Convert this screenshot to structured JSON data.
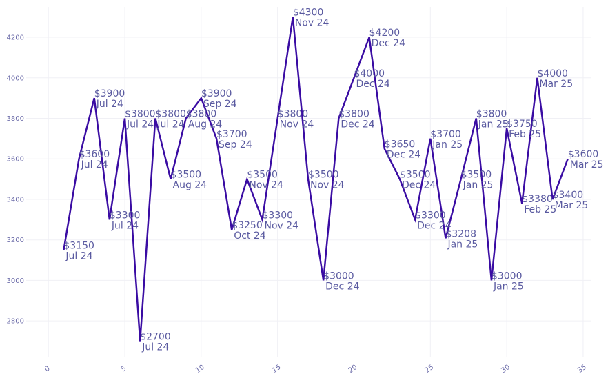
{
  "chart_data": {
    "type": "line",
    "title": "",
    "xlabel": "",
    "ylabel": "",
    "xlim": [
      -1.5,
      35.5
    ],
    "ylim": [
      2620,
      4350
    ],
    "x_ticks": [
      0,
      5,
      10,
      15,
      20,
      25,
      30,
      35
    ],
    "y_ticks": [
      2800,
      3000,
      3200,
      3400,
      3600,
      3800,
      4000,
      4200
    ],
    "grid": true,
    "line_color": "#3a0ca3",
    "label_color": "#5a5aa0",
    "points": [
      {
        "x": 1,
        "y": 3150,
        "price": "$3150",
        "month": "Jul 24"
      },
      {
        "x": 2,
        "y": 3600,
        "price": "$3600",
        "month": "Jul 24"
      },
      {
        "x": 3,
        "y": 3900,
        "price": "$3900",
        "month": "Jul 24"
      },
      {
        "x": 4,
        "y": 3300,
        "price": "$3300",
        "month": "Jul 24"
      },
      {
        "x": 5,
        "y": 3800,
        "price": "$3800",
        "month": "Jul 24"
      },
      {
        "x": 6,
        "y": 2700,
        "price": "$2700",
        "month": "Jul 24"
      },
      {
        "x": 7,
        "y": 3800,
        "price": "$3800",
        "month": "Jul 24"
      },
      {
        "x": 8,
        "y": 3500,
        "price": "$3500",
        "month": "Aug 24"
      },
      {
        "x": 9,
        "y": 3800,
        "price": "$3800",
        "month": "Aug 24"
      },
      {
        "x": 10,
        "y": 3900,
        "price": "$3900",
        "month": "Sep 24"
      },
      {
        "x": 11,
        "y": 3700,
        "price": "$3700",
        "month": "Sep 24"
      },
      {
        "x": 12,
        "y": 3250,
        "price": "$3250",
        "month": "Oct 24"
      },
      {
        "x": 13,
        "y": 3500,
        "price": "$3500",
        "month": "Nov 24"
      },
      {
        "x": 14,
        "y": 3300,
        "price": "$3300",
        "month": "Nov 24"
      },
      {
        "x": 15,
        "y": 3800,
        "price": "$3800",
        "month": "Nov 24"
      },
      {
        "x": 16,
        "y": 4300,
        "price": "$4300",
        "month": "Nov 24"
      },
      {
        "x": 17,
        "y": 3500,
        "price": "$3500",
        "month": "Nov 24"
      },
      {
        "x": 18,
        "y": 3000,
        "price": "$3000",
        "month": "Dec 24"
      },
      {
        "x": 19,
        "y": 3800,
        "price": "$3800",
        "month": "Dec 24"
      },
      {
        "x": 20,
        "y": 4000,
        "price": "$4000",
        "month": "Dec 24"
      },
      {
        "x": 21,
        "y": 4200,
        "price": "$4200",
        "month": "Dec 24"
      },
      {
        "x": 22,
        "y": 3650,
        "price": "$3650",
        "month": "Dec 24"
      },
      {
        "x": 23,
        "y": 3500,
        "price": "$3500",
        "month": "Dec 24"
      },
      {
        "x": 24,
        "y": 3300,
        "price": "$3300",
        "month": "Dec 24"
      },
      {
        "x": 25,
        "y": 3700,
        "price": "$3700",
        "month": "Jan 25"
      },
      {
        "x": 26,
        "y": 3208,
        "price": "$3208",
        "month": "Jan 25"
      },
      {
        "x": 27,
        "y": 3500,
        "price": "$3500",
        "month": "Jan 25"
      },
      {
        "x": 28,
        "y": 3800,
        "price": "$3800",
        "month": "Jan 25"
      },
      {
        "x": 29,
        "y": 3000,
        "price": "$3000",
        "month": "Jan 25"
      },
      {
        "x": 30,
        "y": 3750,
        "price": "$3750",
        "month": "Feb 25"
      },
      {
        "x": 31,
        "y": 3380,
        "price": "$3380",
        "month": "Feb 25"
      },
      {
        "x": 32,
        "y": 4000,
        "price": "$4000",
        "month": "Mar 25"
      },
      {
        "x": 33,
        "y": 3400,
        "price": "$3400",
        "month": "Mar 25"
      },
      {
        "x": 34,
        "y": 3600,
        "price": "$3600",
        "month": "Mar 25"
      }
    ]
  }
}
